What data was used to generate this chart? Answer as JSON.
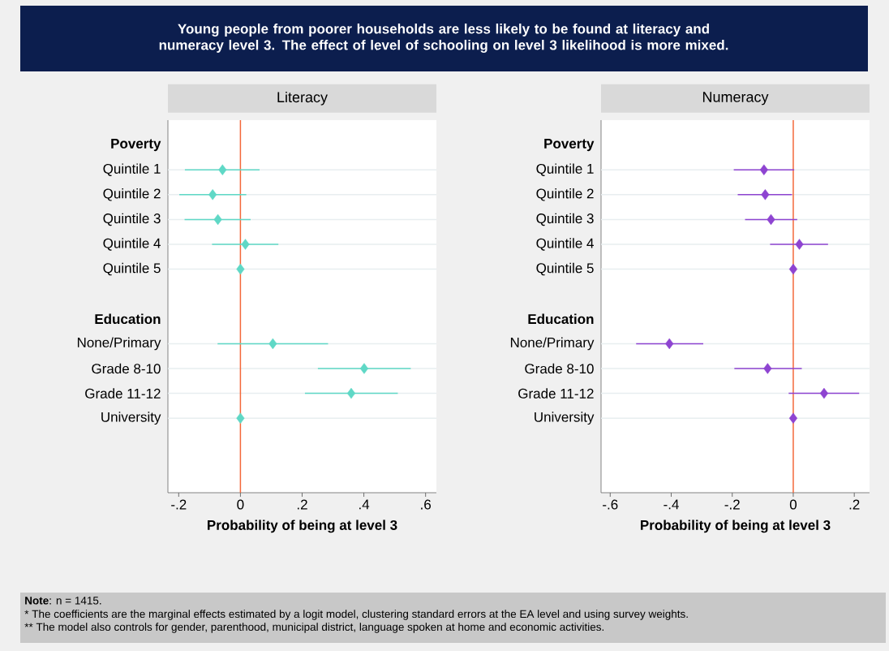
{
  "chart_data": [
    {
      "type": "scatter",
      "orientation": "horizontal",
      "title": "Literacy",
      "xlabel": "Probability of being at level 3",
      "annotations": [
        "Young people from poorer households are less likely to be found at literacy and numeracy level 3. The effect of level of schooling on level 3 likelihood is more mixed.",
        "**Note**: n = 1415.",
        "* The coefficients are the marginal effects estimated by a logit model, clustering standard errors at the EA level and using survey weights.",
        "** The model also controls for gender, parenthood, municipal district, language spoken at home and economic activities."
      ],
      "categories": [
        "Poverty",
        "Quintile 1",
        "Quintile 2",
        "Quintile 3",
        "Quintile 4",
        "Quintile 5",
        null,
        "Education",
        "None/Primary",
        "Grade 8-10",
        "Grade 11-12",
        "University",
        null,
        null
      ],
      "values": [
        null,
        -0.058,
        -0.09,
        -0.073,
        0.016,
        0,
        null,
        null,
        0.105,
        0.401,
        0.359,
        0,
        null,
        null
      ],
      "errors": [
        null,
        [
          -0.18,
          0.062
        ],
        [
          -0.198,
          0.019
        ],
        [
          -0.181,
          0.033
        ],
        [
          -0.092,
          0.123
        ],
        null,
        null,
        null,
        [
          -0.074,
          0.284
        ],
        [
          0.251,
          0.552
        ],
        [
          0.209,
          0.51
        ],
        null,
        null,
        null
      ],
      "color": "#5fd8c6",
      "marker": "diamond",
      "grid": "y",
      "xlim": [
        -0.235,
        0.635
      ],
      "xticks": [
        {
          "value": -0.2,
          "label": "-.2"
        },
        0,
        {
          "value": 0.2,
          "label": ".2"
        },
        {
          "value": 0.4,
          "label": ".4"
        },
        {
          "value": 0.6,
          "label": ".6"
        }
      ],
      "ref_lines": [
        {
          "axis": "x",
          "value": 0,
          "color": "#f4683a"
        }
      ]
    },
    {
      "type": "scatter",
      "orientation": "horizontal",
      "title": "Numeracy",
      "xlabel": "Probability of being at level 3",
      "categories": [
        "Poverty",
        "Quintile 1",
        "Quintile 2",
        "Quintile 3",
        "Quintile 4",
        "Quintile 5",
        null,
        "Education",
        "None/Primary",
        "Grade 8-10",
        "Grade 11-12",
        "University",
        null,
        null
      ],
      "values": [
        null,
        -0.096,
        -0.092,
        -0.073,
        0.02,
        0,
        null,
        null,
        -0.406,
        -0.084,
        0.101,
        0,
        null,
        null
      ],
      "errors": [
        null,
        [
          -0.195,
          0.003
        ],
        [
          -0.182,
          -0.004
        ],
        [
          -0.158,
          0.013
        ],
        [
          -0.076,
          0.114
        ],
        null,
        null,
        null,
        [
          -0.515,
          -0.295
        ],
        [
          -0.193,
          0.028
        ],
        [
          -0.015,
          0.216
        ],
        null,
        null,
        null
      ],
      "color": "#8e44d1",
      "marker": "diamond",
      "grid": "y",
      "xlim": [
        -0.63,
        0.25
      ],
      "xticks": [
        {
          "value": -0.6,
          "label": "-.6"
        },
        {
          "value": -0.4,
          "label": "-.4"
        },
        {
          "value": -0.2,
          "label": "-.2"
        },
        0,
        {
          "value": 0.2,
          "label": ".2"
        }
      ],
      "ref_lines": [
        {
          "axis": "x",
          "value": 0,
          "color": "#f4683a"
        }
      ]
    }
  ]
}
